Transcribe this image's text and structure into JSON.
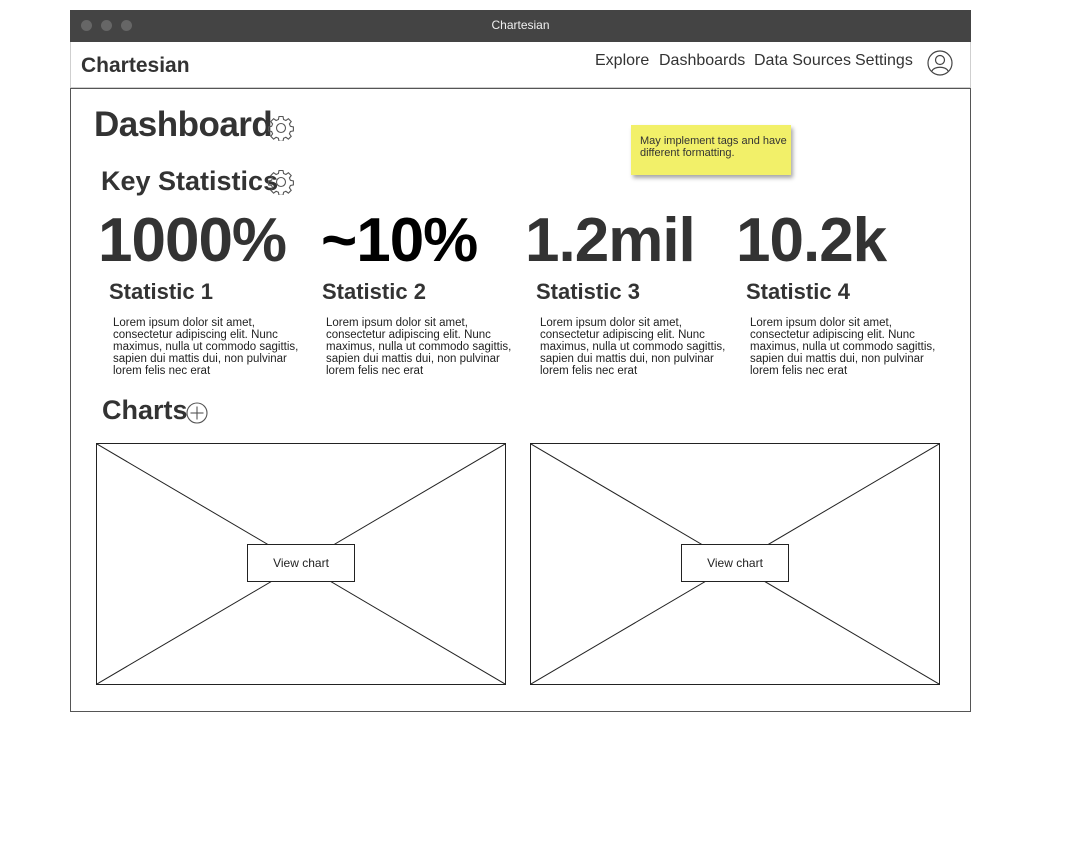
{
  "window": {
    "title": "Chartesian"
  },
  "navbar": {
    "brand": "Chartesian",
    "items": [
      {
        "label": "Explore"
      },
      {
        "label": "Dashboards"
      },
      {
        "label": "Data Sources"
      },
      {
        "label": "Settings"
      }
    ],
    "user_icon": "user-icon"
  },
  "page": {
    "title": "Dashboard",
    "sticky_note": "May implement tags and have different formatting."
  },
  "key_statistics": {
    "title": "Key Statistics",
    "stats": [
      {
        "value": "1000%",
        "label": "Statistic 1",
        "description": "Lorem ipsum dolor sit amet, consectetur adipiscing elit. Nunc maximus, nulla ut commodo sagittis, sapien dui mattis dui, non pulvinar lorem felis nec erat"
      },
      {
        "value": "~10%",
        "label": "Statistic 2",
        "description": "Lorem ipsum dolor sit amet, consectetur adipiscing elit. Nunc maximus, nulla ut commodo sagittis, sapien dui mattis dui, non pulvinar lorem felis nec erat"
      },
      {
        "value": "1.2mil",
        "label": "Statistic 3",
        "description": "Lorem ipsum dolor sit amet, consectetur adipiscing elit. Nunc maximus, nulla ut commodo sagittis, sapien dui mattis dui, non pulvinar lorem felis nec erat"
      },
      {
        "value": "10.2k",
        "label": "Statistic 4",
        "description": "Lorem ipsum dolor sit amet, consectetur adipiscing elit. Nunc maximus, nulla ut commodo sagittis, sapien dui mattis dui, non pulvinar lorem felis nec erat"
      }
    ]
  },
  "charts": {
    "title": "Charts",
    "items": [
      {
        "button_label": "View chart"
      },
      {
        "button_label": "View chart"
      }
    ]
  },
  "colors": {
    "titlebar": "#444444",
    "sticky_note": "#f2f069",
    "text": "#333333"
  }
}
